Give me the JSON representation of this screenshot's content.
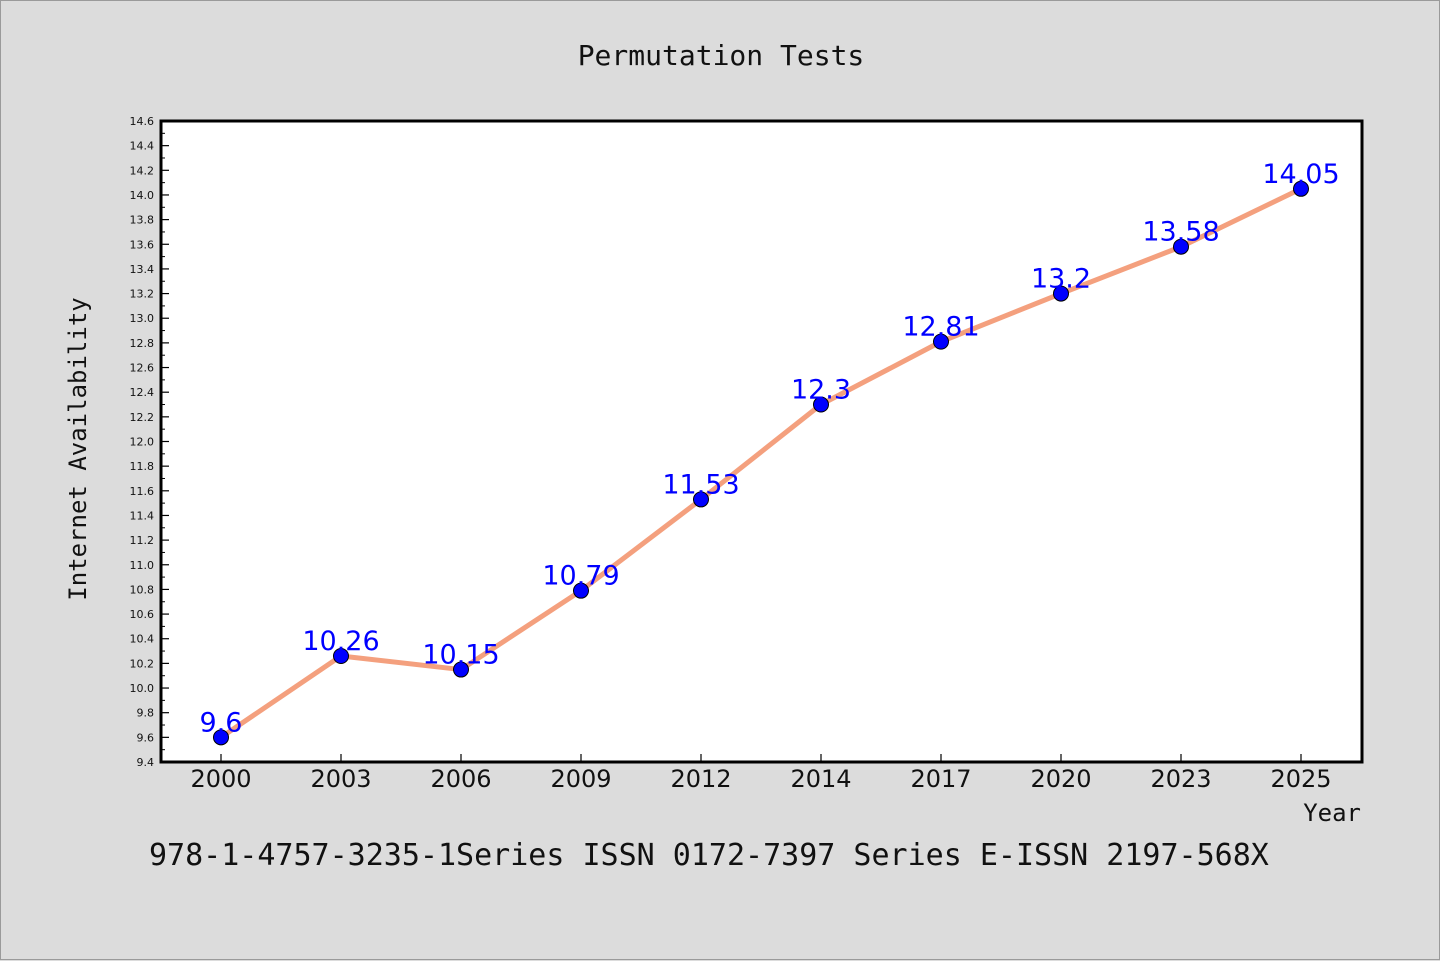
{
  "chart_data": {
    "type": "line",
    "title": "Permutation Tests",
    "xlabel": "Year",
    "ylabel": "Internet Availability",
    "categories": [
      "2000",
      "2003",
      "2006",
      "2009",
      "2012",
      "2014",
      "2017",
      "2020",
      "2023",
      "2025"
    ],
    "series": [
      {
        "values": [
          9.6,
          10.26,
          10.15,
          10.79,
          11.53,
          12.3,
          12.81,
          13.2,
          13.58,
          14.05
        ],
        "data_labels": [
          "9.6",
          "10.26",
          "10.15",
          "10.79",
          "11.53",
          "12.3",
          "12.81",
          "13.2",
          "13.58",
          "14.05"
        ]
      }
    ],
    "ylim": [
      9.4,
      14.6
    ],
    "yticks": [
      "9.4",
      "9.6",
      "9.8",
      "10.0",
      "10.2",
      "10.4",
      "10.6",
      "10.8",
      "11.0",
      "11.2",
      "11.4",
      "11.6",
      "11.8",
      "12.0",
      "12.2",
      "12.4",
      "12.6",
      "12.8",
      "13.0",
      "13.2",
      "13.4",
      "13.6",
      "13.8",
      "14.0",
      "14.2",
      "14.4",
      "14.6"
    ],
    "grid": false,
    "legend": "none",
    "colors": {
      "line": "#f4a07e",
      "marker": "#0000ff",
      "label": "#0000ff",
      "plot_bg": "#ffffff",
      "figure_bg": "#dcdcdc"
    }
  },
  "footer_text": "978-1-4757-3235-1Series ISSN 0172-7397 Series E-ISSN 2197-568X"
}
